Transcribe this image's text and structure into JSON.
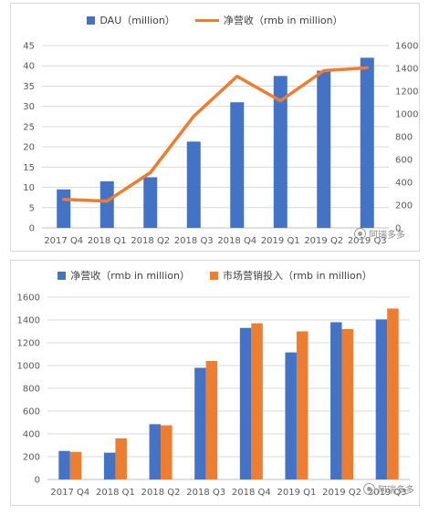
{
  "chart_data": [
    {
      "type": "bar+line",
      "title": "",
      "categories": [
        "2017 Q4",
        "2018 Q1",
        "2018 Q2",
        "2018 Q3",
        "2018 Q4",
        "2019 Q1",
        "2019 Q2",
        "2019 Q3"
      ],
      "series": [
        {
          "name": "DAU（million）",
          "type": "bar",
          "axis": "left",
          "color": "#4472C4",
          "values": [
            9.5,
            11.5,
            12.5,
            21.3,
            31,
            37.5,
            38.8,
            42
          ]
        },
        {
          "name": "净营收（rmb in million）",
          "type": "line",
          "axis": "right",
          "color": "#ED7D31",
          "values": [
            250,
            235,
            485,
            980,
            1330,
            1115,
            1380,
            1405
          ]
        }
      ],
      "ylim_left": [
        0,
        45
      ],
      "yticks_left": [
        0,
        5,
        10,
        15,
        20,
        25,
        30,
        35,
        40,
        45
      ],
      "ylim_right": [
        0,
        1600
      ],
      "yticks_right": [
        0,
        200,
        400,
        600,
        800,
        1000,
        1200,
        1400,
        1600
      ],
      "grid": true,
      "legend": "top"
    },
    {
      "type": "bar",
      "title": "",
      "categories": [
        "2017 Q4",
        "2018 Q1",
        "2018 Q2",
        "2018 Q3",
        "2018 Q4",
        "2019 Q1",
        "2019 Q2",
        "2019 Q3"
      ],
      "series": [
        {
          "name": "净营收（rmb in million）",
          "color": "#4472C4",
          "values": [
            250,
            235,
            485,
            980,
            1330,
            1115,
            1380,
            1405
          ]
        },
        {
          "name": "市场营销投入（rmb in million）",
          "color": "#ED7D31",
          "values": [
            242,
            360,
            475,
            1040,
            1370,
            1300,
            1320,
            1500
          ]
        }
      ],
      "ylim": [
        0,
        1600
      ],
      "yticks": [
        0,
        200,
        400,
        600,
        800,
        1000,
        1200,
        1400,
        1600
      ],
      "grid": true,
      "legend": "top"
    }
  ],
  "watermark": {
    "text": "阿瑞多多"
  }
}
